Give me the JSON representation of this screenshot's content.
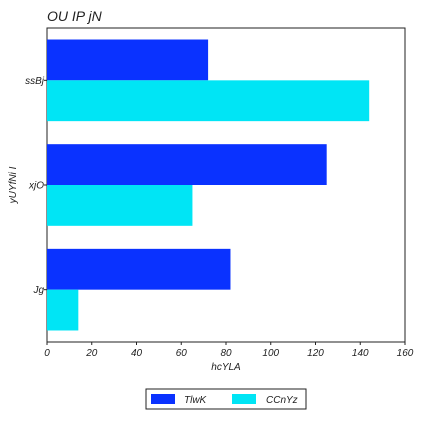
{
  "chart_data": {
    "type": "bar",
    "orientation": "horizontal",
    "title": "OU IP jN",
    "xlabel": "hcYLA",
    "ylabel": "yUYfNi  I",
    "categories": [
      "ssBj",
      "xjO",
      "Jg"
    ],
    "series": [
      {
        "name": "TlwK",
        "color": "#0a32ff",
        "values": [
          72,
          125,
          82
        ]
      },
      {
        "name": "CCnYz",
        "color": "#00e5f5",
        "values": [
          144,
          65,
          14
        ]
      }
    ],
    "xlim": [
      0,
      160
    ],
    "xticks": [
      "0",
      "20",
      "40",
      "60",
      "80",
      "100",
      "120",
      "140",
      "160"
    ],
    "grid": false,
    "legend_position": "bottom-center"
  }
}
